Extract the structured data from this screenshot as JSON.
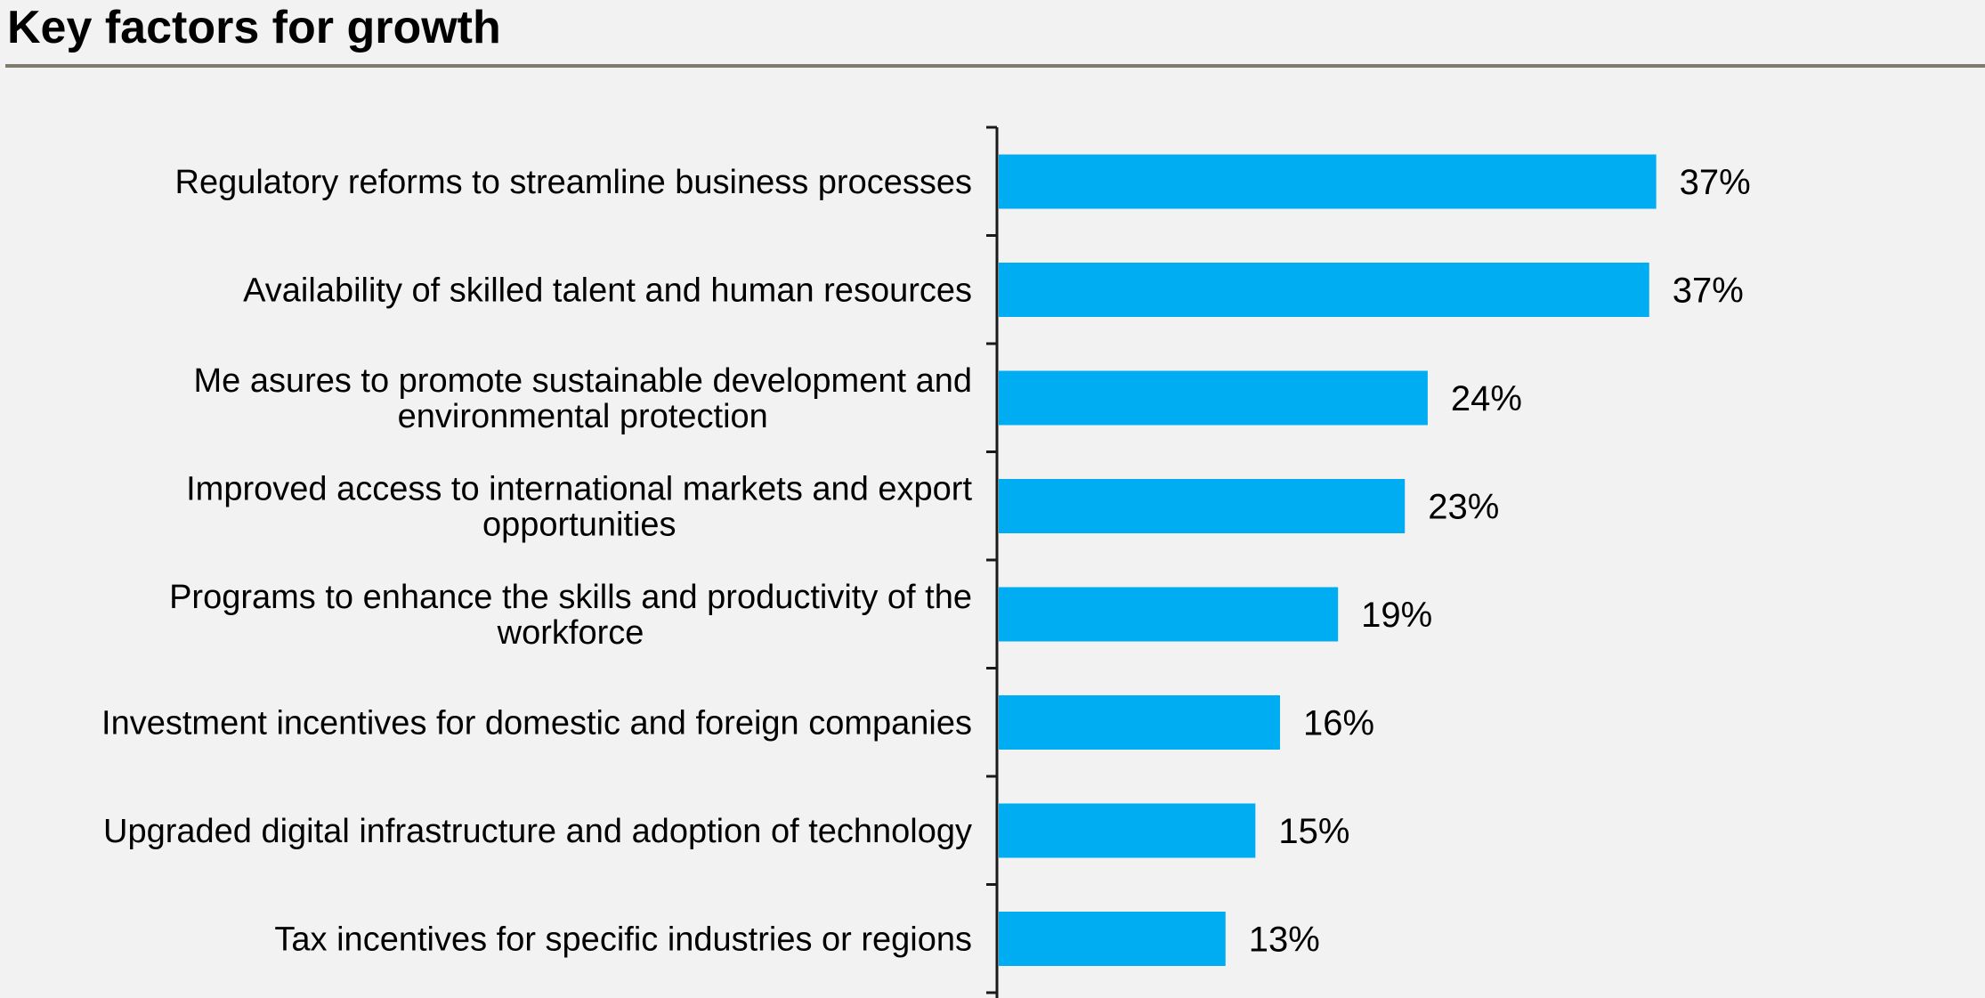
{
  "chart_data": {
    "type": "bar",
    "orientation": "horizontal",
    "title": "Key factors for growth",
    "categories": [
      [
        "Regulatory reforms to streamline business processes"
      ],
      [
        "Availability of skilled talent and human resources"
      ],
      [
        "Me asures to promote sustainable development and",
        "environmental protection"
      ],
      [
        "Improved access to international markets and export",
        "opportunities"
      ],
      [
        "Programs to enhance the skills and productivity of the",
        "workforce"
      ],
      [
        "Investment incentives for domestic and foreign companies"
      ],
      [
        "Upgraded digital infrastructure and adoption of technology"
      ],
      [
        "Tax incentives for specific industries or regions"
      ]
    ],
    "values": [
      37.4,
      37.0,
      24.4,
      23.1,
      19.3,
      16.0,
      14.6,
      12.9
    ],
    "value_labels": [
      "37%",
      "37%",
      "24%",
      "23%",
      "19%",
      "16%",
      "15%",
      "13%"
    ],
    "unit": "%",
    "xlim": [
      0,
      40
    ],
    "grid": false,
    "legend": "none",
    "bar_color": "#00adf2",
    "axis_color": "#1a1a1a",
    "xlabel": "",
    "ylabel": ""
  }
}
